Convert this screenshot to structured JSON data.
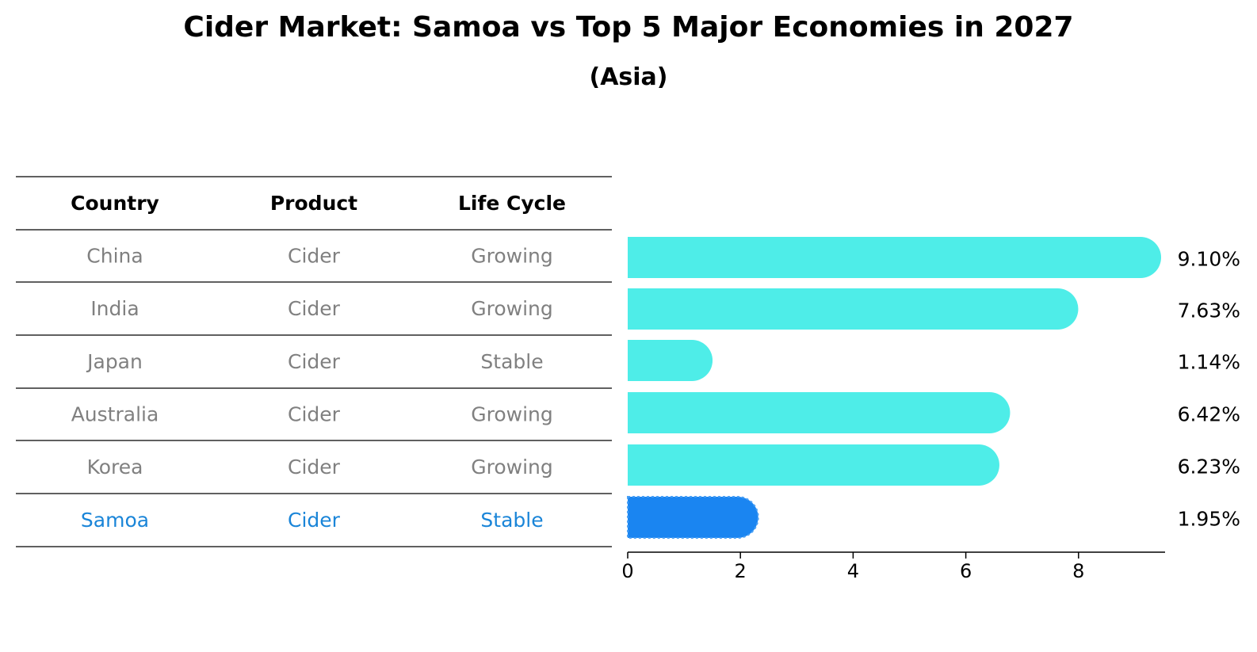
{
  "title": "Cider Market: Samoa vs Top 5 Major Economies in 2027",
  "subtitle": "(Asia)",
  "table": {
    "headers": [
      "Country",
      "Product",
      "Life Cycle"
    ],
    "rows": [
      [
        "China",
        "Cider",
        "Growing"
      ],
      [
        "India",
        "Cider",
        "Growing"
      ],
      [
        "Japan",
        "Cider",
        "Stable"
      ],
      [
        "Australia",
        "Cider",
        "Growing"
      ],
      [
        "Korea",
        "Cider",
        "Growing"
      ],
      [
        "Samoa",
        "Cider",
        "Stable"
      ]
    ]
  },
  "chart_data": {
    "type": "bar",
    "orientation": "horizontal",
    "categories": [
      "China",
      "India",
      "Japan",
      "Australia",
      "Korea",
      "Samoa"
    ],
    "values": [
      9.1,
      7.63,
      1.14,
      6.42,
      6.23,
      1.95
    ],
    "value_labels": [
      "9.10%",
      "7.63%",
      "1.14%",
      "6.42%",
      "6.23%",
      "1.95%"
    ],
    "highlight": "Samoa",
    "xlim": [
      0,
      9.55
    ],
    "xticks": [
      0,
      2,
      4,
      6,
      8
    ],
    "grid": false,
    "colors": {
      "bar": "#4EEDE8",
      "highlight_bar": "#1A85F1",
      "row_text": "#808080",
      "highlight_text": "#1A85D8",
      "header_text": "#000000"
    }
  }
}
